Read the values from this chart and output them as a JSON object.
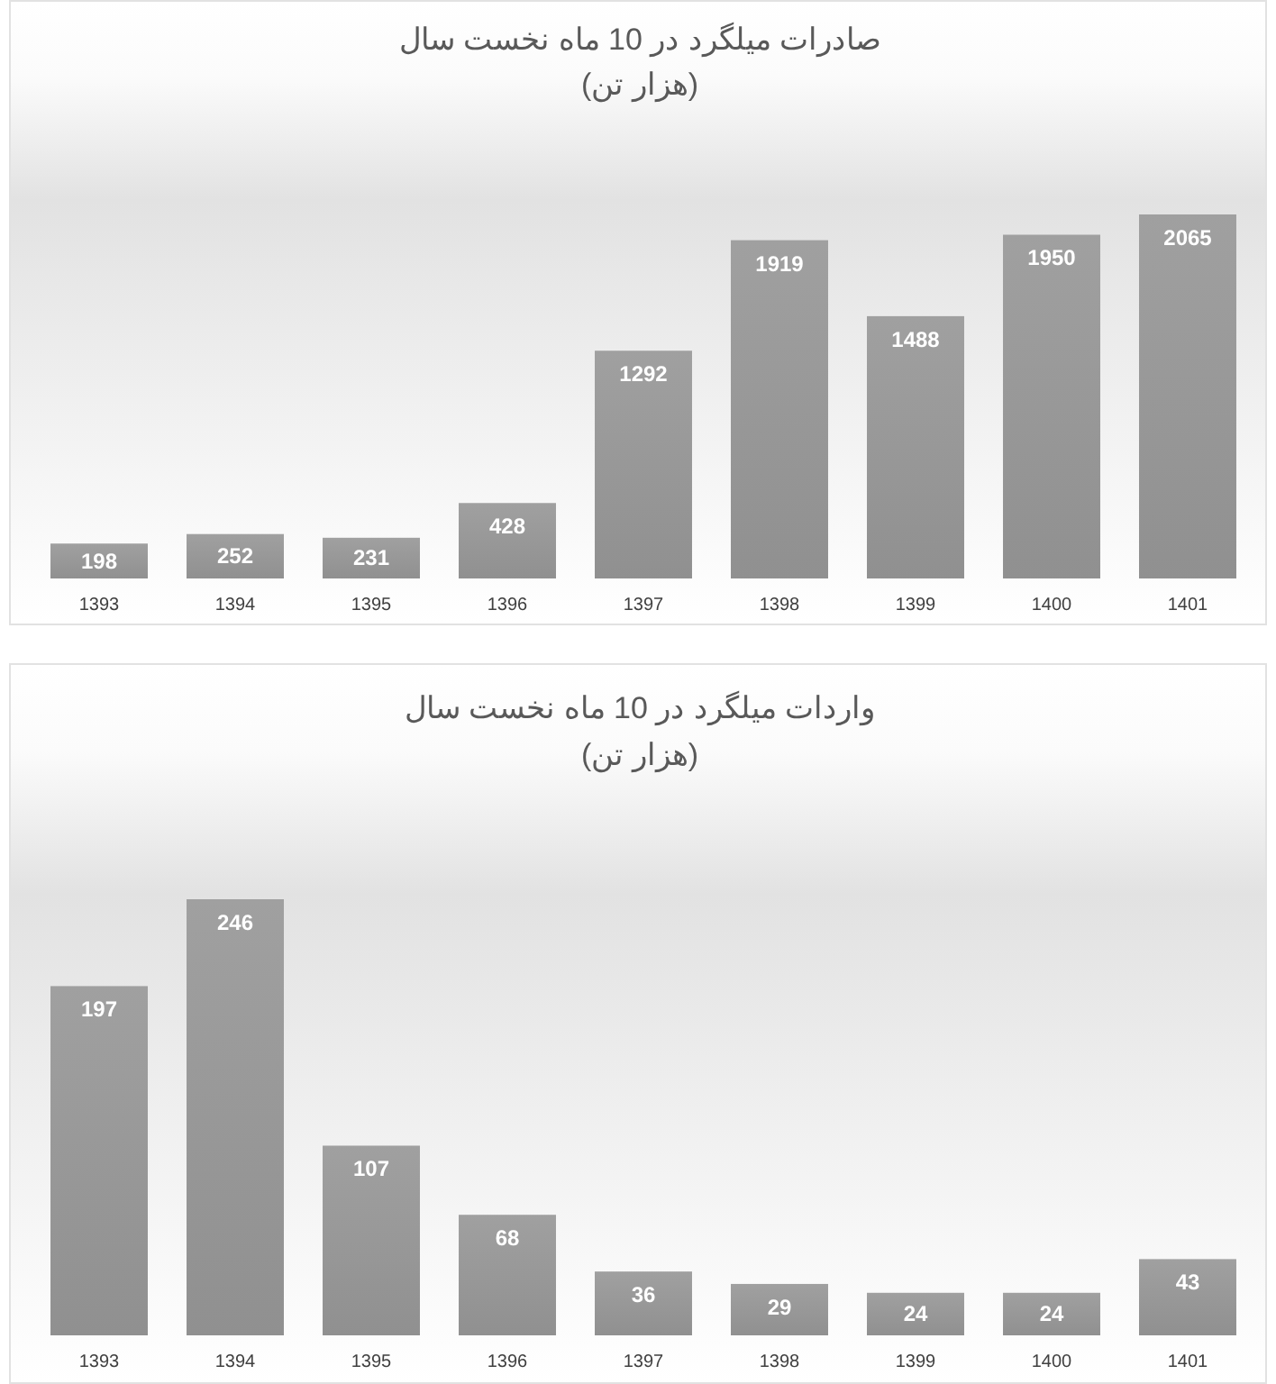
{
  "chart_data": [
    {
      "type": "bar",
      "title": "صادرات میلگرد در 10 ماه نخست سال",
      "subtitle": "(هزار تن)",
      "categories": [
        "1393",
        "1394",
        "1395",
        "1396",
        "1397",
        "1398",
        "1399",
        "1400",
        "1401"
      ],
      "values": [
        198,
        252,
        231,
        428,
        1292,
        1919,
        1488,
        1950,
        2065
      ],
      "color": "#989898",
      "data_labels": true
    },
    {
      "type": "bar",
      "title": "واردات میلگرد در 10 ماه نخست سال",
      "subtitle": "(هزار تن)",
      "categories": [
        "1393",
        "1394",
        "1395",
        "1396",
        "1397",
        "1398",
        "1399",
        "1400",
        "1401"
      ],
      "values": [
        197,
        246,
        107,
        68,
        36,
        29,
        24,
        24,
        43
      ],
      "color": "#989898",
      "data_labels": true
    }
  ]
}
